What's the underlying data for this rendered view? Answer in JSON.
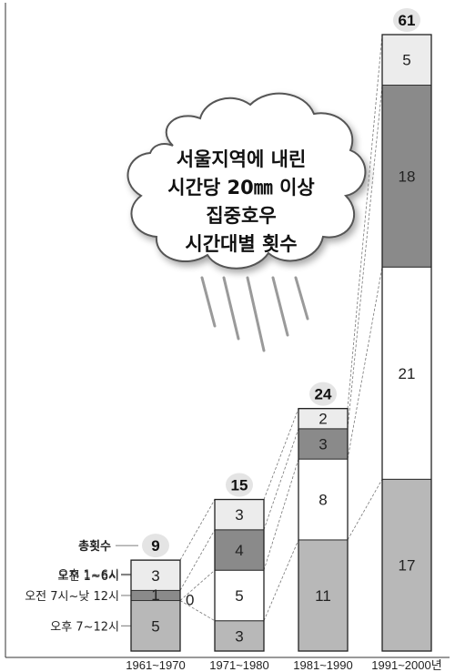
{
  "chart_data": {
    "type": "bar",
    "stacked": true,
    "title": [
      "서울지역에 내린",
      "시간당 20㎜ 이상",
      "집중호우",
      "시간대별 횟수"
    ],
    "total_label": "총횟수",
    "categories": [
      "1961~1970",
      "1971~1980",
      "1981~1990",
      "1991~2000년"
    ],
    "series": [
      {
        "name": "오후 7~12시",
        "values": [
          5,
          3,
          11,
          17
        ],
        "color": "#b8b8b8"
      },
      {
        "name": "오후 1~6시",
        "values": [
          0,
          5,
          8,
          21
        ],
        "color": "#ffffff"
      },
      {
        "name": "오전 7시~낮 12시",
        "values": [
          1,
          4,
          3,
          18
        ],
        "color": "#8a8a8a"
      },
      {
        "name": "오전 1~6시",
        "values": [
          3,
          3,
          2,
          5
        ],
        "color": "#ececec"
      }
    ],
    "totals": [
      9,
      15,
      24,
      61
    ],
    "ylim": [
      0,
      61
    ]
  }
}
